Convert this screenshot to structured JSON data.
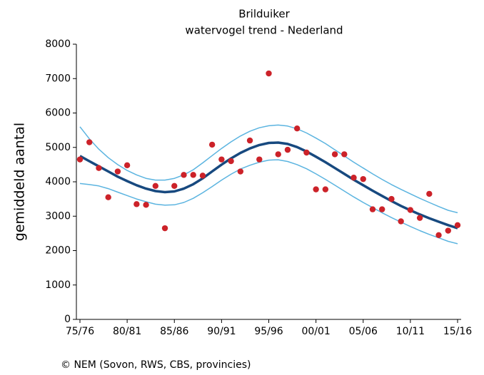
{
  "chart_data": {
    "type": "line",
    "title": "Brilduiker",
    "subtitle": "watervogel trend - Nederland",
    "y_label": "gemiddeld aantal",
    "source": "© NEM (Sovon, RWS, CBS, provincies)",
    "categories": [
      "75/76",
      null,
      null,
      null,
      null,
      "80/81",
      null,
      null,
      null,
      null,
      "85/86",
      null,
      null,
      null,
      null,
      "90/91",
      null,
      null,
      null,
      null,
      "95/96",
      null,
      null,
      null,
      null,
      "00/01",
      null,
      null,
      null,
      null,
      "05/06",
      null,
      null,
      null,
      null,
      "10/11",
      null,
      null,
      null,
      null,
      "15/16"
    ],
    "ylim": [
      0,
      8000
    ],
    "yticks": [
      0,
      1000,
      2000,
      3000,
      4000,
      5000,
      6000,
      7000,
      8000
    ],
    "series": [
      {
        "mark": "line",
        "color": "#5bb4e0",
        "width": 1.5,
        "values": [
          5600,
          5250,
          4950,
          4700,
          4500,
          4330,
          4200,
          4100,
          4050,
          4050,
          4100,
          4200,
          4350,
          4550,
          4760,
          4970,
          5160,
          5330,
          5470,
          5570,
          5630,
          5650,
          5620,
          5540,
          5420,
          5270,
          5110,
          4930,
          4750,
          4570,
          4400,
          4230,
          4070,
          3920,
          3780,
          3650,
          3520,
          3400,
          3280,
          3170,
          3100
        ]
      },
      {
        "mark": "line",
        "color": "#5bb4e0",
        "width": 1.5,
        "values": [
          3950,
          3920,
          3880,
          3800,
          3700,
          3600,
          3500,
          3420,
          3350,
          3320,
          3330,
          3400,
          3520,
          3680,
          3860,
          4050,
          4220,
          4370,
          4480,
          4570,
          4630,
          4640,
          4590,
          4500,
          4380,
          4230,
          4070,
          3900,
          3730,
          3560,
          3400,
          3250,
          3100,
          2960,
          2830,
          2700,
          2580,
          2470,
          2370,
          2270,
          2200
        ]
      },
      {
        "mark": "line",
        "color": "#17497f",
        "width": 3.5,
        "values": [
          4750,
          4600,
          4450,
          4300,
          4150,
          4020,
          3900,
          3800,
          3730,
          3700,
          3720,
          3800,
          3930,
          4100,
          4300,
          4500,
          4680,
          4840,
          4970,
          5070,
          5130,
          5140,
          5100,
          5010,
          4880,
          4730,
          4570,
          4400,
          4230,
          4060,
          3900,
          3740,
          3590,
          3440,
          3300,
          3170,
          3050,
          2940,
          2840,
          2740,
          2650
        ]
      },
      {
        "mark": "dot",
        "color": "#cc2229",
        "values": [
          4650,
          5150,
          4400,
          3550,
          4300,
          4480,
          3350,
          3330,
          3880,
          2650,
          3880,
          4200,
          4200,
          4180,
          5080,
          4650,
          4600,
          4300,
          5200,
          4650,
          7150,
          4800,
          4930,
          5550,
          4850,
          3780,
          3780,
          4800,
          4800,
          4120,
          4080,
          3200,
          3200,
          3500,
          2850,
          3180,
          2950,
          3650,
          2450,
          2580,
          2740
        ]
      }
    ]
  }
}
